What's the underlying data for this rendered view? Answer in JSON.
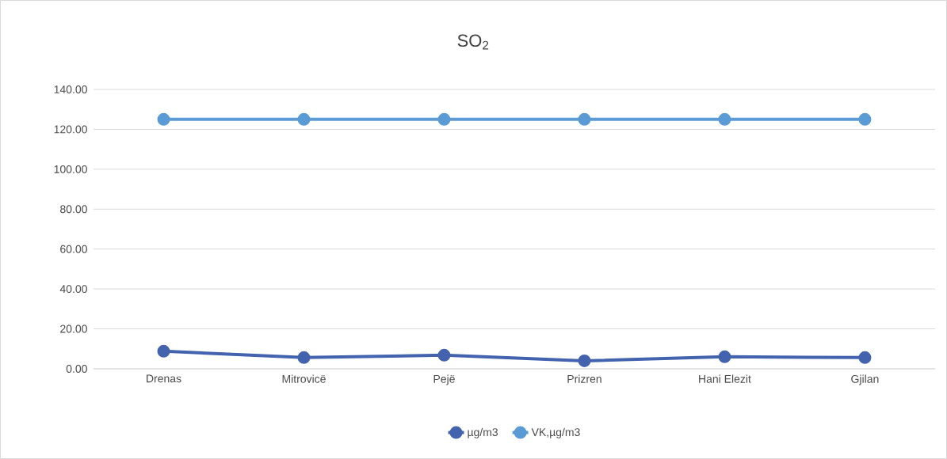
{
  "chart_data": {
    "type": "line",
    "title": "SO$_{2}$",
    "categories": [
      "Drenas",
      "Mitrovicë",
      "Pejë",
      "Prizren",
      "Hani Elezit",
      "Gjilan"
    ],
    "series": [
      {
        "name": "µg/m3",
        "color": "#4463ae",
        "values": [
          8.8,
          5.6,
          6.8,
          4.0,
          6.0,
          5.6
        ]
      },
      {
        "name": "VK,µg/m3",
        "color": "#5b9bd5",
        "values": [
          125,
          125,
          125,
          125,
          125,
          125
        ]
      }
    ],
    "ylim": [
      0,
      140
    ],
    "yticks": [
      {
        "value": 0,
        "label": "0.00"
      },
      {
        "value": 20,
        "label": "20.00"
      },
      {
        "value": 40,
        "label": "40.00"
      },
      {
        "value": 60,
        "label": "60.00"
      },
      {
        "value": 80,
        "label": "80.00"
      },
      {
        "value": 100,
        "label": "100.00"
      },
      {
        "value": 120,
        "label": "120.00"
      },
      {
        "value": 140,
        "label": "140.00"
      }
    ],
    "grid": "y",
    "legend": "bottom",
    "marker": "circle",
    "line_style": "solid"
  }
}
